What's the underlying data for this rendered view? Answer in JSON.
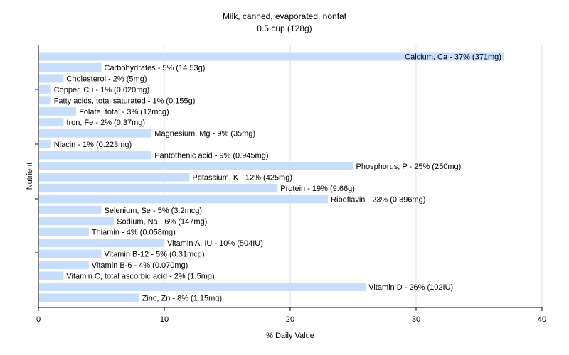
{
  "chart_data": {
    "type": "bar",
    "orientation": "horizontal",
    "title": "Milk, canned, evaporated, nonfat",
    "subtitle": "0.5 cup (128g)",
    "xlabel": "% Daily Value",
    "ylabel": "Nutrient",
    "xlim": [
      0,
      40
    ],
    "xticks": [
      "0",
      "10",
      "20",
      "30",
      "40"
    ],
    "grid": true,
    "bar_color": "#c6defc",
    "categories": [
      "Calcium, Ca",
      "Carbohydrates",
      "Cholesterol",
      "Copper, Cu",
      "Fatty acids, total saturated",
      "Folate, total",
      "Iron, Fe",
      "Magnesium, Mg",
      "Niacin",
      "Pantothenic acid",
      "Phosphorus, P",
      "Potassium, K",
      "Protein",
      "Riboflavin",
      "Selenium, Se",
      "Sodium, Na",
      "Thiamin",
      "Vitamin A, IU",
      "Vitamin B-12",
      "Vitamin B-6",
      "Vitamin C, total ascorbic acid",
      "Vitamin D",
      "Zinc, Zn"
    ],
    "values": [
      37,
      5,
      2,
      1,
      1,
      3,
      2,
      9,
      1,
      9,
      25,
      12,
      19,
      23,
      5,
      6,
      4,
      10,
      5,
      4,
      2,
      26,
      8
    ],
    "data_labels": [
      "Calcium, Ca - 37% (371mg)",
      "Carbohydrates - 5% (14.53g)",
      "Cholesterol - 2% (5mg)",
      "Copper, Cu - 1% (0.020mg)",
      "Fatty acids, total saturated - 1% (0.155g)",
      "Folate, total - 3% (12mcg)",
      "Iron, Fe - 2% (0.37mg)",
      "Magnesium, Mg - 9% (35mg)",
      "Niacin - 1% (0.223mg)",
      "Pantothenic acid - 9% (0.945mg)",
      "Phosphorus, P - 25% (250mg)",
      "Potassium, K - 12% (425mg)",
      "Protein - 19% (9.66g)",
      "Riboflavin - 23% (0.396mg)",
      "Selenium, Se - 5% (3.2mcg)",
      "Sodium, Na - 6% (147mg)",
      "Thiamin - 4% (0.058mg)",
      "Vitamin A, IU - 10% (504IU)",
      "Vitamin B-12 - 5% (0.31mcg)",
      "Vitamin B-6 - 4% (0.070mg)",
      "Vitamin C, total ascorbic acid - 2% (1.5mg)",
      "Vitamin D - 26% (102IU)",
      "Zinc, Zn - 8% (1.15mg)"
    ]
  }
}
